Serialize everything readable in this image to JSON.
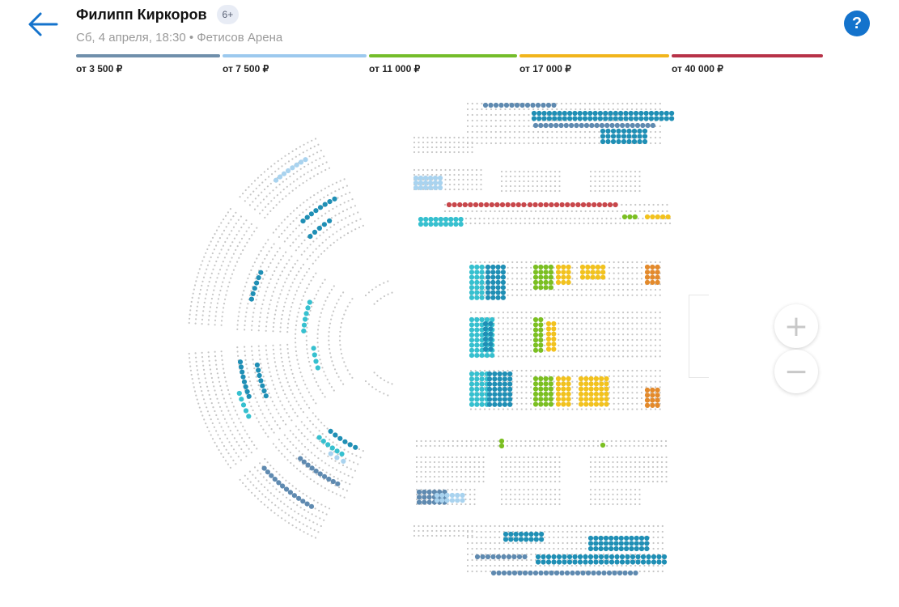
{
  "header": {
    "title": "Филипп Киркоров",
    "age_badge": "6+",
    "subtitle": "Сб, 4 апреля, 18:30 • Фетисов Арена",
    "back_icon": "arrow-left-icon",
    "help_label": "?"
  },
  "price_legend": [
    {
      "label": "от 3 500 ₽",
      "color": "#6f8fab"
    },
    {
      "label": "от 7 500 ₽",
      "color": "#9cc9ee"
    },
    {
      "label": "от 11 000 ₽",
      "color": "#74bd2a"
    },
    {
      "label": "от 17 000 ₽",
      "color": "#f1b51c"
    },
    {
      "label": "от 40 000 ₽",
      "color": "#b73248"
    }
  ],
  "zoom": {
    "in_label": "+",
    "out_label": "−"
  },
  "colors": {
    "accent": "#1473cc",
    "empty_seat": "#c6c6c6",
    "available_teal": "#1f8fb5",
    "available_cyan": "#36c0cf",
    "available_steel": "#5f8ab0",
    "available_light": "#a9d3ef",
    "available_green": "#7bbf22",
    "available_yellow": "#f2c21e",
    "available_orange": "#e38a2c",
    "available_red": "#c8474b"
  }
}
